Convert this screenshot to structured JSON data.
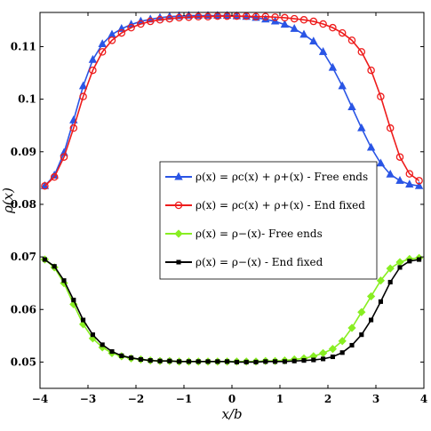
{
  "chart_data": {
    "type": "line",
    "title": "",
    "xlabel": "x/b",
    "ylabel": "ρ(x)",
    "xlim": [
      -4,
      4
    ],
    "ylim": [
      0.045,
      0.1165
    ],
    "xticks": [
      -4,
      -3,
      -2,
      -1,
      0,
      1,
      2,
      3,
      4
    ],
    "xtick_labels": [
      "−4",
      "−3",
      "−2",
      "−1",
      "0",
      "1",
      "2",
      "3",
      "4"
    ],
    "yticks": [
      0.05,
      0.06,
      0.07,
      0.08,
      0.09,
      0.1,
      0.11
    ],
    "ytick_labels": [
      "0.05",
      "0.06",
      "0.07",
      "0.08",
      "0.09",
      "0.1",
      "0.11"
    ],
    "grid": false,
    "legend_position": "center-right",
    "x": [
      -3.9,
      -3.7,
      -3.5,
      -3.3,
      -3.1,
      -2.9,
      -2.7,
      -2.5,
      -2.3,
      -2.1,
      -1.9,
      -1.7,
      -1.5,
      -1.3,
      -1.1,
      -0.9,
      -0.7,
      -0.5,
      -0.3,
      -0.1,
      0.1,
      0.3,
      0.5,
      0.7,
      0.9,
      1.1,
      1.3,
      1.5,
      1.7,
      1.9,
      2.1,
      2.3,
      2.5,
      2.7,
      2.9,
      3.1,
      3.3,
      3.5,
      3.7,
      3.9
    ],
    "series": [
      {
        "name": "ρ(x) = ρc(x) + ρ+(x) - Free ends",
        "color": "#2a55e5",
        "marker": "triangle",
        "values": [
          0.0835,
          0.0855,
          0.0898,
          0.096,
          0.1025,
          0.1075,
          0.1105,
          0.1123,
          0.1134,
          0.1142,
          0.1148,
          0.1152,
          0.1155,
          0.1157,
          0.1158,
          0.1159,
          0.1159,
          0.1159,
          0.1159,
          0.1159,
          0.1158,
          0.1157,
          0.1155,
          0.1152,
          0.1148,
          0.1142,
          0.1134,
          0.1123,
          0.111,
          0.109,
          0.106,
          0.1025,
          0.0985,
          0.0945,
          0.0908,
          0.0878,
          0.0857,
          0.0845,
          0.0838,
          0.0835
        ]
      },
      {
        "name": "ρ(x) = ρc(x) + ρ+(x) - End fixed",
        "color": "#ee1c1c",
        "marker": "circle",
        "values": [
          0.0835,
          0.0852,
          0.089,
          0.0945,
          0.1005,
          0.1055,
          0.109,
          0.1112,
          0.1126,
          0.1136,
          0.1143,
          0.1148,
          0.1151,
          0.1153,
          0.1155,
          0.1156,
          0.1157,
          0.1157,
          0.1158,
          0.1158,
          0.1158,
          0.1158,
          0.1157,
          0.1157,
          0.1156,
          0.1155,
          0.1153,
          0.1151,
          0.1148,
          0.1143,
          0.1136,
          0.1126,
          0.1112,
          0.109,
          0.1055,
          0.1005,
          0.0945,
          0.089,
          0.0858,
          0.0845
        ]
      },
      {
        "name": "ρ(x) = ρ−(x)- Free ends",
        "color": "#88ee22",
        "marker": "diamond",
        "values": [
          0.0695,
          0.068,
          0.065,
          0.061,
          0.0572,
          0.0545,
          0.0528,
          0.0517,
          0.0511,
          0.0507,
          0.0505,
          0.0503,
          0.0502,
          0.0502,
          0.0501,
          0.0501,
          0.0501,
          0.0501,
          0.0501,
          0.0501,
          0.0501,
          0.0501,
          0.0501,
          0.0502,
          0.0502,
          0.0503,
          0.0505,
          0.0507,
          0.0511,
          0.0517,
          0.0525,
          0.054,
          0.0565,
          0.0595,
          0.0625,
          0.0655,
          0.0678,
          0.069,
          0.0696,
          0.0698
        ]
      },
      {
        "name": "ρ(x) = ρ−(x) - End fixed",
        "color": "#000000",
        "marker": "square",
        "values": [
          0.0695,
          0.0682,
          0.0655,
          0.0618,
          0.058,
          0.0552,
          0.0533,
          0.052,
          0.0512,
          0.0508,
          0.0505,
          0.0503,
          0.0502,
          0.0502,
          0.0501,
          0.0501,
          0.0501,
          0.0501,
          0.0501,
          0.0501,
          0.05,
          0.05,
          0.05,
          0.0501,
          0.0501,
          0.0501,
          0.0502,
          0.0503,
          0.0504,
          0.0506,
          0.051,
          0.0518,
          0.0532,
          0.0552,
          0.058,
          0.0615,
          0.0652,
          0.068,
          0.0692,
          0.0695
        ]
      }
    ]
  }
}
